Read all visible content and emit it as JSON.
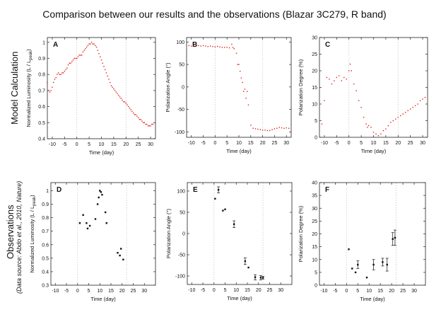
{
  "title": "Comparison between our results and the observations (Blazar 3C279, R band)",
  "rows": {
    "model": {
      "label": "Model Calculation"
    },
    "obs": {
      "label": "Observations",
      "source": "(Data source: Abdo et al., 2010, Nature)"
    }
  },
  "colors": {
    "model": "#e0201b",
    "obs": "#111111",
    "axis": "#222222",
    "guide": "#c8c8c8"
  },
  "chart_data": [
    {
      "panel": "A",
      "type": "scatter",
      "xlabel": "Time (day)",
      "ylabel": "Normalized Luminosity (L / L",
      "ylabel_sub": "peak",
      "ylabel_end": ")",
      "xlim": [
        -12,
        32
      ],
      "ylim": [
        0.4,
        1.03
      ],
      "xticks": [
        -10,
        -5,
        0,
        5,
        10,
        15,
        20,
        25,
        30
      ],
      "yticks": [
        0.4,
        0.5,
        0.6,
        0.7,
        0.8,
        0.9,
        1
      ],
      "guides": [
        0,
        20
      ],
      "series": [
        {
          "name": "model",
          "style": "model",
          "x": [
            -12,
            -11.5,
            -11,
            -10.5,
            -10,
            -9.5,
            -9,
            -8.5,
            -8,
            -7.5,
            -7,
            -6.5,
            -6,
            -5.5,
            -5,
            -4.5,
            -4,
            -3.5,
            -3,
            -2.5,
            -2,
            -1.5,
            -1,
            -0.5,
            0,
            0.5,
            1,
            1.5,
            2,
            2.5,
            3,
            3.5,
            4,
            4.5,
            5,
            5.5,
            6,
            6.5,
            7,
            7.5,
            8,
            8.5,
            9,
            9.5,
            10,
            10.5,
            11,
            11.5,
            12,
            12.5,
            13,
            13.5,
            14,
            14.5,
            15,
            15.5,
            16,
            16.5,
            17,
            17.5,
            18,
            18.5,
            19,
            19.5,
            20,
            20.5,
            21,
            21.5,
            22,
            22.5,
            23,
            23.5,
            24,
            24.5,
            25,
            25.5,
            26,
            26.5,
            27,
            27.5,
            28,
            28.5,
            29,
            29.5,
            30,
            30.5,
            31
          ],
          "y": [
            0.75,
            0.7,
            0.69,
            0.7,
            0.72,
            0.75,
            0.77,
            0.78,
            0.8,
            0.81,
            0.8,
            0.8,
            0.81,
            0.81,
            0.82,
            0.83,
            0.84,
            0.86,
            0.87,
            0.87,
            0.88,
            0.89,
            0.9,
            0.9,
            0.9,
            0.91,
            0.92,
            0.92,
            0.92,
            0.94,
            0.95,
            0.96,
            0.97,
            0.98,
            0.99,
            0.99,
            1.0,
            0.99,
            0.99,
            0.98,
            0.97,
            0.95,
            0.93,
            0.91,
            0.89,
            0.87,
            0.85,
            0.83,
            0.81,
            0.79,
            0.77,
            0.75,
            0.73,
            0.72,
            0.71,
            0.7,
            0.69,
            0.68,
            0.67,
            0.66,
            0.65,
            0.64,
            0.63,
            0.63,
            0.62,
            0.61,
            0.6,
            0.59,
            0.58,
            0.57,
            0.56,
            0.55,
            0.55,
            0.54,
            0.53,
            0.52,
            0.52,
            0.51,
            0.5,
            0.5,
            0.49,
            0.49,
            0.48,
            0.48,
            0.48,
            0.49,
            0.49
          ]
        }
      ]
    },
    {
      "panel": "B",
      "type": "scatter",
      "xlabel": "Time (day)",
      "ylabel": "Polarization Angle (°)",
      "xlim": [
        -12,
        32
      ],
      "ylim": [
        -112,
        110
      ],
      "xticks": [
        -10,
        -5,
        0,
        5,
        10,
        15,
        20,
        25,
        30
      ],
      "yticks": [
        -100,
        -50,
        0,
        50,
        100
      ],
      "guides": [
        0,
        20
      ],
      "series": [
        {
          "name": "model",
          "style": "model",
          "x": [
            -11,
            -10,
            -9,
            -8,
            -7,
            -6,
            -5,
            -4,
            -3,
            -2,
            -1,
            0,
            1,
            2,
            3,
            4,
            5,
            6,
            7,
            7.5,
            8,
            9,
            9.5,
            10,
            10.5,
            11,
            11.5,
            12,
            12.5,
            13,
            13.5,
            14,
            15,
            16,
            17,
            18,
            19,
            20,
            21,
            22,
            23,
            24,
            25,
            26,
            27,
            28,
            29,
            30,
            31
          ],
          "y": [
            92,
            91,
            92,
            93,
            92,
            91,
            92,
            91,
            90,
            91,
            90,
            89,
            90,
            89,
            88,
            88,
            88,
            87,
            95,
            88,
            85,
            75,
            50,
            50,
            35,
            20,
            10,
            -10,
            -5,
            -25,
            -10,
            -40,
            -85,
            -92,
            -93,
            -94,
            -95,
            -96,
            -96,
            -97,
            -97,
            -95,
            -93,
            -92,
            -90,
            -91,
            -92,
            -91,
            -92
          ]
        }
      ]
    },
    {
      "panel": "C",
      "type": "scatter",
      "xlabel": "Time (day)",
      "ylabel": "Polarization Degree (%)",
      "xlim": [
        -12,
        32
      ],
      "ylim": [
        0,
        30
      ],
      "xticks": [
        -10,
        -5,
        0,
        5,
        10,
        15,
        20,
        25,
        30
      ],
      "yticks": [
        0,
        5,
        10,
        15,
        20,
        25,
        30
      ],
      "guides": [
        0,
        20
      ],
      "series": [
        {
          "name": "model",
          "style": "model",
          "x": [
            -11,
            -10,
            -9,
            -8,
            -7,
            -6,
            -5,
            -4,
            -3,
            -2,
            -1,
            0,
            0.5,
            1,
            2,
            3,
            4,
            5,
            6,
            7,
            7.5,
            8,
            9,
            10,
            11,
            12,
            13,
            14,
            15,
            16,
            17,
            18,
            19,
            20,
            21,
            22,
            23,
            24,
            25,
            26,
            27,
            28,
            29,
            30,
            31
          ],
          "y": [
            4,
            11,
            18,
            17.5,
            16,
            17,
            18,
            18.5,
            17,
            18,
            17.5,
            20,
            22,
            20,
            16,
            14,
            11,
            9,
            6,
            4,
            3,
            3.5,
            3,
            1.5,
            1,
            0.5,
            1,
            2,
            2.5,
            3.5,
            4.5,
            5,
            5.5,
            6,
            6.5,
            7,
            7.5,
            8,
            8.5,
            9,
            9.5,
            10,
            11,
            11.5,
            12
          ]
        }
      ]
    },
    {
      "panel": "D",
      "type": "scatter",
      "xlabel": "Time (day)",
      "ylabel": "Normalized Luminosity (L / L",
      "ylabel_sub": "peak",
      "ylabel_end": ")",
      "xlim": [
        -12,
        35
      ],
      "ylim": [
        0.3,
        1.06
      ],
      "xticks": [
        -10,
        -5,
        0,
        5,
        10,
        15,
        20,
        25,
        30
      ],
      "yticks": [
        0.3,
        0.4,
        0.5,
        0.6,
        0.7,
        0.8,
        0.9,
        1
      ],
      "guides": [
        0,
        22
      ],
      "series": [
        {
          "name": "observed",
          "style": "obs",
          "x": [
            1,
            2.5,
            4,
            4.5,
            5.5,
            8,
            9,
            9.5,
            10,
            10.5,
            11,
            12.5,
            13,
            18,
            19,
            19.5,
            20.5
          ],
          "y": [
            0.76,
            0.82,
            0.76,
            0.72,
            0.74,
            0.79,
            0.9,
            0.95,
            1.0,
            0.99,
            0.97,
            0.84,
            0.76,
            0.54,
            0.52,
            0.57,
            0.49
          ]
        }
      ]
    },
    {
      "panel": "E",
      "type": "scatter",
      "xlabel": "Time (day)",
      "ylabel": "Polarization Angle (°)",
      "xlim": [
        -12,
        35
      ],
      "ylim": [
        -120,
        120
      ],
      "xticks": [
        -10,
        -5,
        0,
        5,
        10,
        15,
        20,
        25,
        30
      ],
      "yticks": [
        -100,
        -50,
        0,
        50,
        100
      ],
      "guides": [
        0,
        22
      ],
      "series": [
        {
          "name": "observed",
          "style": "obs",
          "x": [
            0.5,
            2,
            4,
            5,
            9,
            14,
            15.5,
            18.5,
            21,
            22
          ],
          "y": [
            82,
            103,
            54,
            57,
            22,
            -65,
            -80,
            -103,
            -104,
            -104
          ],
          "err": [
            0,
            7,
            0,
            0,
            8,
            8,
            0,
            6,
            5,
            3
          ]
        }
      ]
    },
    {
      "panel": "F",
      "type": "scatter",
      "xlabel": "Time (day)",
      "ylabel": "Polarization Degree (%)",
      "xlim": [
        -12,
        35
      ],
      "ylim": [
        0,
        40
      ],
      "xticks": [
        -10,
        -5,
        0,
        5,
        10,
        15,
        20,
        25,
        30
      ],
      "yticks": [
        0,
        5,
        10,
        15,
        20,
        25,
        30,
        35,
        40
      ],
      "guides": [
        0,
        22
      ],
      "series": [
        {
          "name": "observed",
          "style": "obs",
          "x": [
            1,
            2.5,
            4,
            5,
            9,
            12,
            16,
            18,
            20.5,
            21.5
          ],
          "y": [
            14,
            6.5,
            5,
            8,
            3,
            8,
            9,
            8,
            18,
            18.5
          ],
          "err": [
            0,
            0,
            0,
            1.5,
            0,
            2,
            1.5,
            2.5,
            2.5,
            3
          ]
        }
      ]
    }
  ]
}
